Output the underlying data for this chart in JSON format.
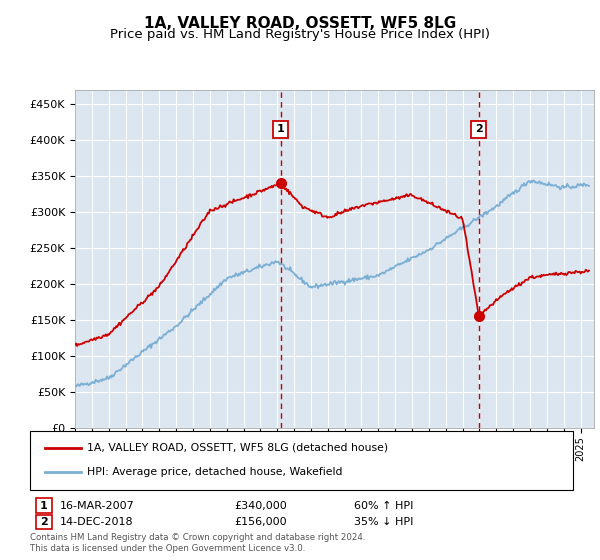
{
  "title": "1A, VALLEY ROAD, OSSETT, WF5 8LG",
  "subtitle": "Price paid vs. HM Land Registry's House Price Index (HPI)",
  "ylabel_ticks": [
    "£0",
    "£50K",
    "£100K",
    "£150K",
    "£200K",
    "£250K",
    "£300K",
    "£350K",
    "£400K",
    "£450K"
  ],
  "ytick_values": [
    0,
    50000,
    100000,
    150000,
    200000,
    250000,
    300000,
    350000,
    400000,
    450000
  ],
  "ylim": [
    0,
    470000
  ],
  "xlim_start": 1995.0,
  "xlim_end": 2025.8,
  "marker1_x": 2007.21,
  "marker1_y": 340000,
  "marker1_label": "1",
  "marker2_x": 2018.96,
  "marker2_y": 156000,
  "marker2_label": "2",
  "red_color": "#cc0000",
  "blue_color": "#7bafd4",
  "background_color": "#dce6f0",
  "grid_color": "#ffffff",
  "legend_line1": "1A, VALLEY ROAD, OSSETT, WF5 8LG (detached house)",
  "legend_line2": "HPI: Average price, detached house, Wakefield",
  "footnote": "Contains HM Land Registry data © Crown copyright and database right 2024.\nThis data is licensed under the Open Government Licence v3.0.",
  "title_fontsize": 11,
  "subtitle_fontsize": 9.5
}
